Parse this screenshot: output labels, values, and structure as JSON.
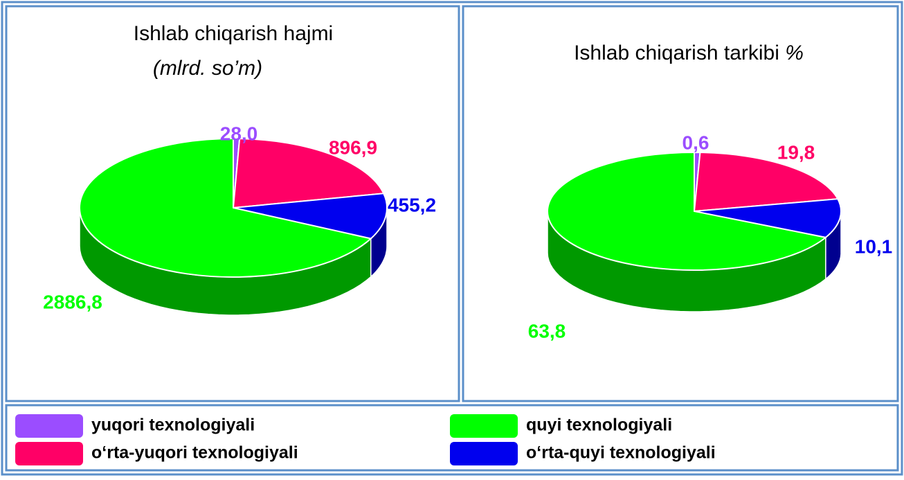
{
  "chart_data": [
    {
      "type": "pie",
      "title": "Ishlab chiqarish hajmi",
      "subtitle": "(mlrd. so’m)",
      "values": [
        28.0,
        896.9,
        455.2,
        2886.8
      ],
      "value_labels": [
        "28,0",
        "896,9",
        "455,2",
        "2886,8"
      ]
    },
    {
      "type": "pie",
      "title": "Ishlab chiqarish tarkibi",
      "subtitle": "%",
      "values": [
        0.6,
        19.8,
        10.1,
        63.8
      ],
      "value_labels": [
        "0,6",
        "19,8",
        "10,1",
        "63,8"
      ]
    }
  ],
  "legend": {
    "items": [
      {
        "name": "yuqori texnologiyali",
        "color": "#9b4dff"
      },
      {
        "name": "o‘rta-yuqori texnologiyali",
        "color": "#ff0066"
      },
      {
        "name": "o‘rta-quyi texnologiyali",
        "color": "#0000ee"
      },
      {
        "name": "quyi texnologiyali",
        "color": "#00ff00"
      }
    ]
  }
}
